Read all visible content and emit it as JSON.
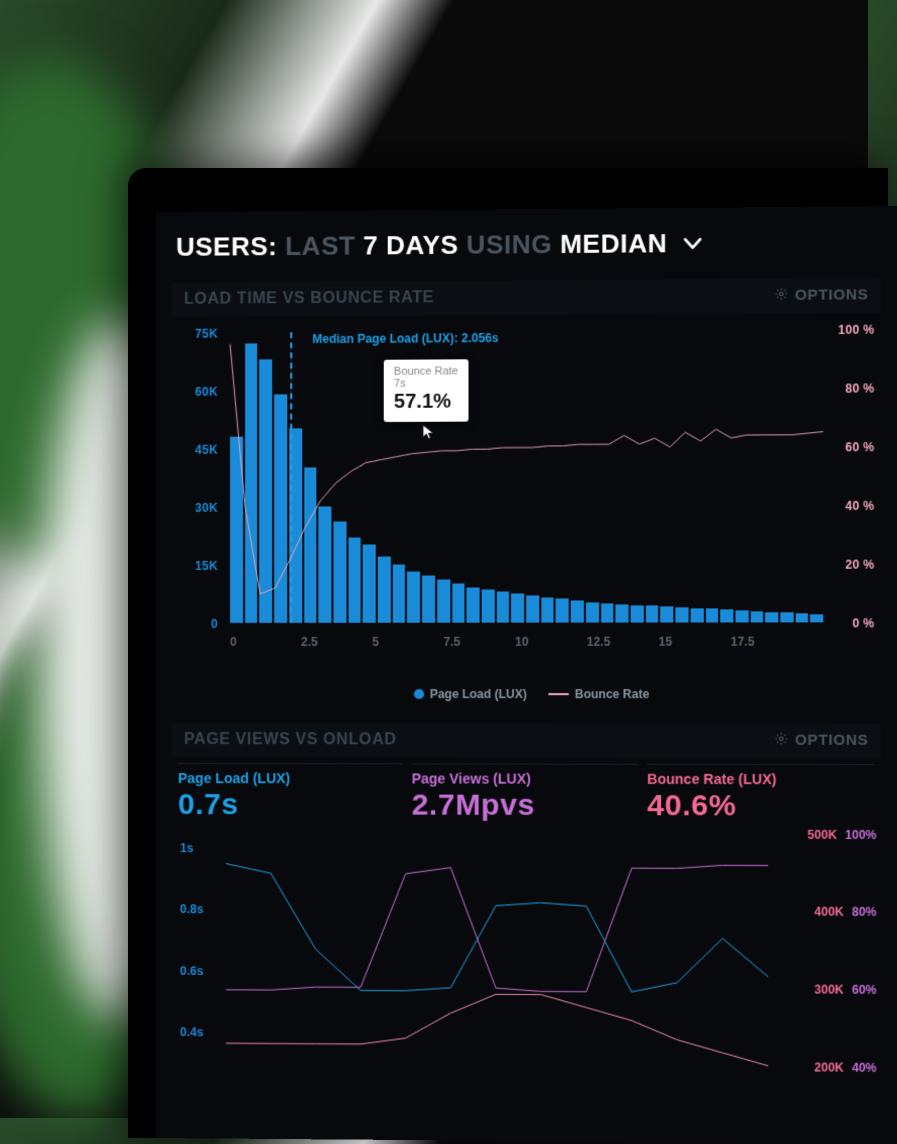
{
  "header": {
    "segments": [
      {
        "text": "USERS:",
        "cls": "w"
      },
      {
        "text": " LAST ",
        "cls": "g"
      },
      {
        "text": "7 DAYS",
        "cls": "w"
      },
      {
        "text": " USING ",
        "cls": "g"
      },
      {
        "text": "MEDIAN",
        "cls": "w"
      }
    ]
  },
  "panel1": {
    "title": "LOAD TIME VS BOUNCE RATE",
    "options_label": "OPTIONS",
    "chart": {
      "type": "bar+line",
      "bar_color": "#1a8bd8",
      "line_color": "#f4a9bd",
      "line_width": 2,
      "background": "#07090c",
      "y_left": {
        "min": 0,
        "max": 75000,
        "ticks": [
          0,
          15000,
          30000,
          45000,
          60000,
          75000
        ],
        "tick_labels": [
          "0",
          "15K",
          "30K",
          "45K",
          "60K",
          "75K"
        ],
        "color": "#1a8bd8"
      },
      "y_right": {
        "min": 0,
        "max": 100,
        "ticks": [
          0,
          20,
          40,
          60,
          80,
          100
        ],
        "tick_labels": [
          "0 %",
          "20 %",
          "40 %",
          "60 %",
          "80 %",
          "100 %"
        ],
        "color": "#f4a9bd"
      },
      "x": {
        "min": 0,
        "max": 20,
        "ticks": [
          0,
          2.5,
          5,
          7.5,
          10,
          12.5,
          15,
          17.5
        ],
        "tick_labels": [
          "0",
          "2.5",
          "5",
          "7.5",
          "10",
          "12.5",
          "15",
          "17.5"
        ]
      },
      "bars": [
        48000,
        72000,
        68000,
        59000,
        50000,
        40000,
        30000,
        26000,
        22000,
        20000,
        17000,
        15000,
        13000,
        12000,
        11000,
        10000,
        9000,
        8500,
        8000,
        7500,
        7000,
        6500,
        6000,
        5500,
        5000,
        4800,
        4600,
        4400,
        4200,
        4000,
        3800,
        3600,
        3400,
        3200,
        3000,
        2800,
        2600,
        2400,
        2200,
        2000
      ],
      "line": [
        96,
        40,
        10,
        12,
        22,
        33,
        42,
        48,
        52,
        55,
        56,
        57,
        58,
        58.5,
        59,
        59,
        59.5,
        59.5,
        60,
        60,
        60,
        60.5,
        60.5,
        61,
        61,
        61,
        64,
        61,
        63,
        60,
        65,
        62,
        66,
        63,
        64,
        64,
        64,
        64,
        64.5,
        65
      ],
      "median_x": 2.056,
      "median_label": "Median Page Load (LUX): 2.056s",
      "tooltip": {
        "title": "Bounce Rate",
        "sub": "7s",
        "value": "57.1%",
        "at_x": 7
      },
      "legend": [
        {
          "kind": "dot",
          "label": "Page Load (LUX)"
        },
        {
          "kind": "dash",
          "label": "Bounce Rate"
        }
      ]
    }
  },
  "panel2": {
    "title": "PAGE VIEWS VS ONLOAD",
    "options_label": "OPTIONS",
    "stats": [
      {
        "label": "Page Load (LUX)",
        "value": "0.7s",
        "color": "blue"
      },
      {
        "label": "Page Views (LUX)",
        "value": "2.7Mpvs",
        "color": "purp"
      },
      {
        "label": "Bounce Rate (LUX)",
        "value": "40.6%",
        "color": "pink"
      }
    ],
    "chart": {
      "type": "multi-line",
      "background": "#07090c",
      "y_left": {
        "ticks": [
          0.4,
          0.6,
          0.8,
          1.0
        ],
        "tick_labels": [
          "0.4s",
          "0.6s",
          "0.8s",
          "1s"
        ],
        "color": "#1a8bd8",
        "min": 0.3,
        "max": 1.05
      },
      "y_right": {
        "ticks": [
          200000,
          300000,
          400000,
          500000
        ],
        "tick_labels_left": [
          "200K",
          "300K",
          "400K",
          "500K"
        ],
        "tick_labels_right": [
          "40%",
          "60%",
          "80%",
          "100%"
        ],
        "label_color_left": "#f46a93",
        "label_color_right": "#c76fd7"
      },
      "series": {
        "blue": {
          "color": "#1ea0e6",
          "width": 2,
          "y": [
            0.95,
            0.92,
            0.68,
            0.55,
            0.55,
            0.56,
            0.82,
            0.83,
            0.82,
            0.55,
            0.58,
            0.72,
            0.6
          ]
        },
        "purple": {
          "color": "#c76fd7",
          "width": 2,
          "y": [
            0.55,
            0.55,
            0.56,
            0.56,
            0.92,
            0.94,
            0.56,
            0.55,
            0.55,
            0.94,
            0.94,
            0.95,
            0.95
          ]
        },
        "pink": {
          "color": "#f48aa6",
          "width": 2,
          "y": [
            0.38,
            0.38,
            0.38,
            0.38,
            0.4,
            0.48,
            0.54,
            0.54,
            0.5,
            0.46,
            0.4,
            0.36,
            0.32
          ]
        }
      }
    }
  },
  "colors": {
    "bg": "#07090c",
    "grid": "#182028",
    "muted": "#4a555f"
  }
}
